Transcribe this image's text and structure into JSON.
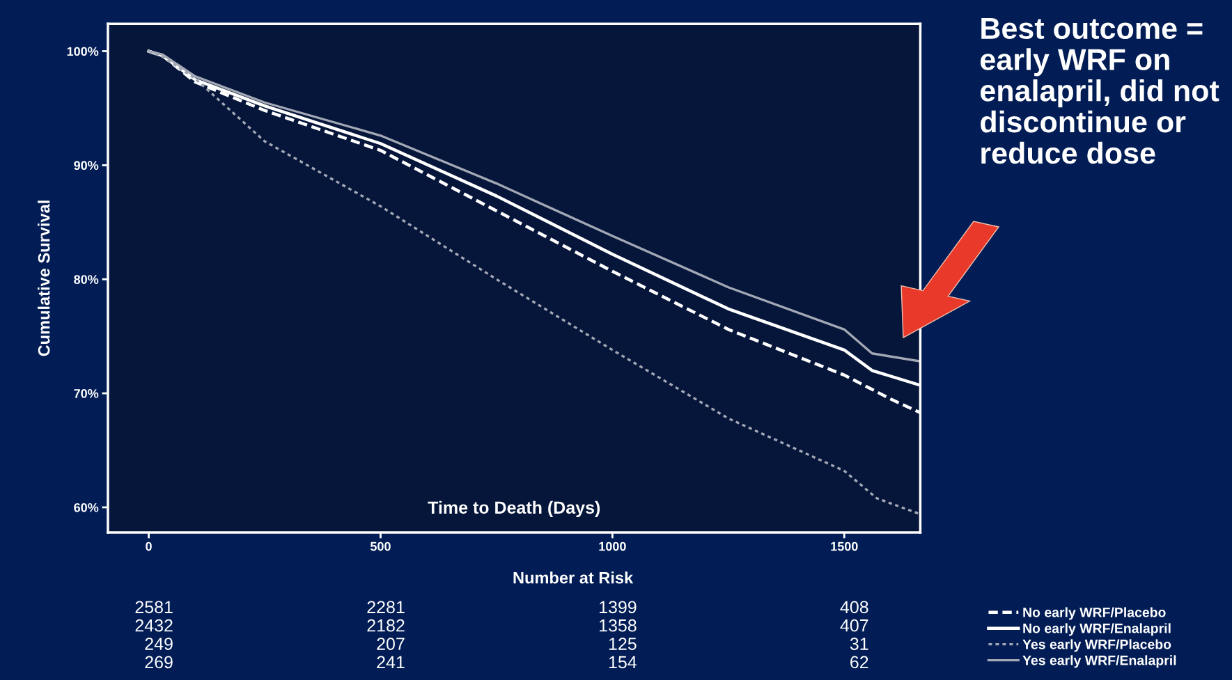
{
  "chart_data": {
    "type": "line",
    "xlabel": "Time to Death (Days)",
    "ylabel": "Cumulative Survival",
    "xlim": [
      -88,
      1664
    ],
    "ylim": [
      57.8,
      102.4
    ],
    "xticks": [
      0,
      500,
      1000,
      1500
    ],
    "yticks": [
      {
        "value": 60,
        "label": "60%"
      },
      {
        "value": 70,
        "label": "70%"
      },
      {
        "value": 80,
        "label": "80%"
      },
      {
        "value": 90,
        "label": "90%"
      },
      {
        "value": 100,
        "label": "100%"
      }
    ],
    "grid": false,
    "legend": "bottom right",
    "series": [
      {
        "name": "No early WRF/Placebo",
        "color": "#ffffff",
        "line_style": "dashed",
        "x": [
          0,
          30,
          100,
          250,
          500,
          750,
          1000,
          1250,
          1500,
          1600,
          1664
        ],
        "values": [
          100,
          99.6,
          97.3,
          94.8,
          91.3,
          86.0,
          80.7,
          75.6,
          71.6,
          69.5,
          68.3
        ]
      },
      {
        "name": "No early WRF/Enalapril",
        "color": "#ffffff",
        "line_style": "solid",
        "x": [
          0,
          30,
          100,
          250,
          500,
          750,
          1000,
          1250,
          1500,
          1560,
          1664
        ],
        "values": [
          100,
          99.6,
          97.5,
          95.2,
          91.9,
          87.3,
          82.2,
          77.4,
          73.8,
          72.0,
          70.7
        ]
      },
      {
        "name": "Yes early WRF/Placebo",
        "color": "#a3a8b5",
        "line_style": "dotted",
        "x": [
          0,
          30,
          100,
          250,
          500,
          750,
          1000,
          1250,
          1500,
          1570,
          1664
        ],
        "values": [
          100,
          99.5,
          97.6,
          92.1,
          86.4,
          80.0,
          73.8,
          67.8,
          63.2,
          60.8,
          59.4
        ]
      },
      {
        "name": "Yes early WRF/Enalapril",
        "color": "#a3a8b5",
        "line_style": "solid",
        "x": [
          0,
          30,
          100,
          250,
          500,
          750,
          1000,
          1250,
          1500,
          1560,
          1664
        ],
        "values": [
          100,
          99.7,
          97.8,
          95.5,
          92.6,
          88.4,
          83.8,
          79.3,
          75.6,
          73.5,
          72.8
        ]
      }
    ],
    "annotations": [
      "Best outcome = early WRF on enalapril, did not discontinue or reduce dose",
      "Number at Risk",
      "2581",
      "2281",
      "1399",
      "408",
      "2432",
      "2182",
      "1358",
      "407",
      "249",
      "207",
      "125",
      "31",
      "269",
      "241",
      "154",
      "62"
    ]
  }
}
